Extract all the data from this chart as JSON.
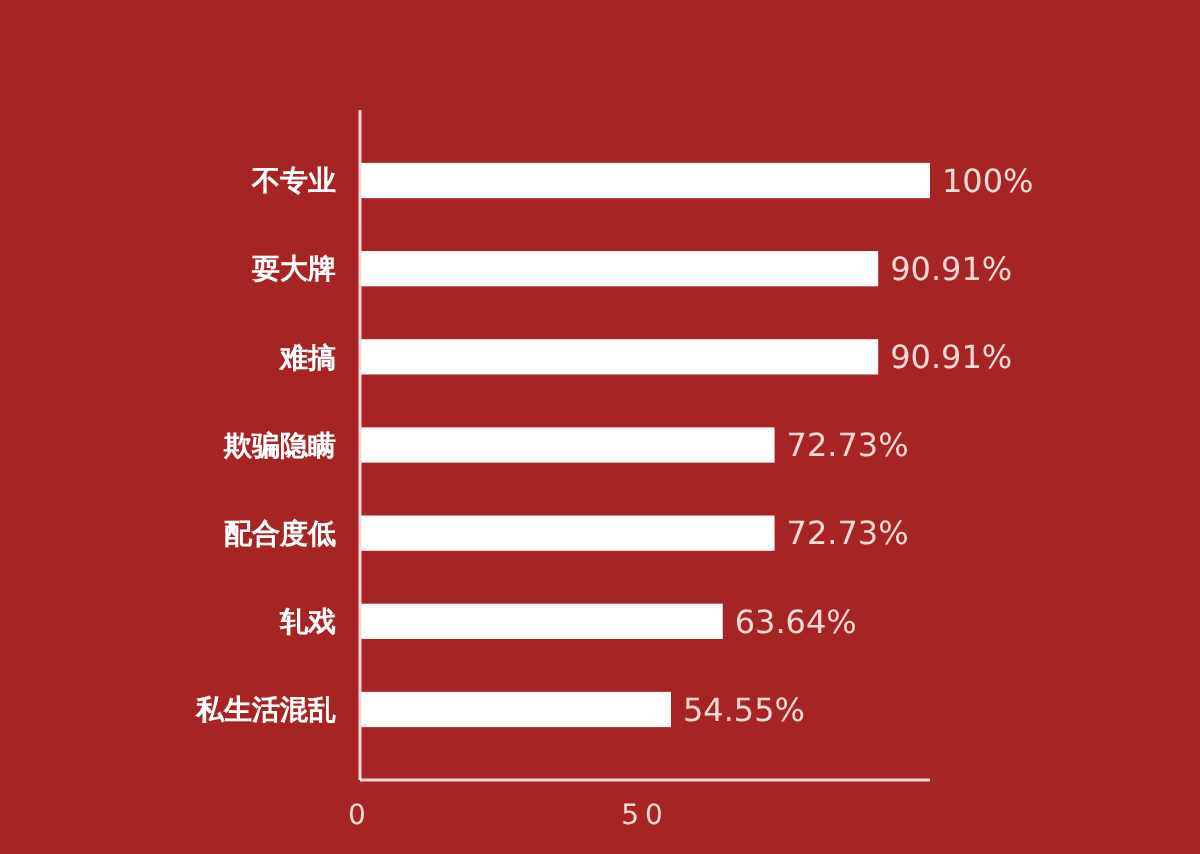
{
  "chart_data": {
    "type": "bar",
    "orientation": "horizontal",
    "categories": [
      "不专业",
      "耍大牌",
      "难搞",
      "欺骗隐瞒",
      "配合度低",
      "轧戏",
      "私生活混乱"
    ],
    "values": [
      100,
      90.91,
      90.91,
      72.73,
      72.73,
      63.64,
      54.55
    ],
    "value_labels": [
      "100%",
      "90.91%",
      "90.91%",
      "72.73%",
      "72.73%",
      "63.64%",
      "54.55%"
    ],
    "color": "#ffffff",
    "xlim": [
      0,
      100
    ],
    "xticks": [
      0,
      50
    ],
    "grid": false
  }
}
